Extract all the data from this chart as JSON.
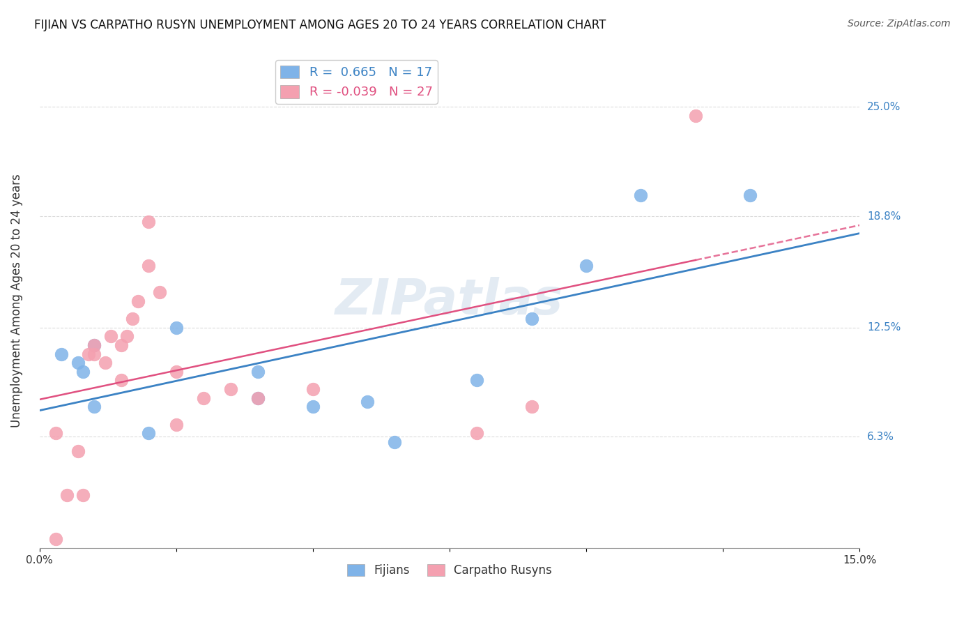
{
  "title": "FIJIAN VS CARPATHO RUSYN UNEMPLOYMENT AMONG AGES 20 TO 24 YEARS CORRELATION CHART",
  "source": "Source: ZipAtlas.com",
  "ylabel": "Unemployment Among Ages 20 to 24 years",
  "xmin": 0.0,
  "xmax": 0.15,
  "ymin": 0.0,
  "ymax": 0.28,
  "fijian_color": "#7fb3e8",
  "fijian_line_color": "#3b82c4",
  "carpatho_color": "#f4a0b0",
  "carpatho_line_color": "#e05080",
  "background_color": "#ffffff",
  "watermark": "ZIPatlas",
  "legend_R1": "R =  0.665   N = 17",
  "legend_R2": "R = -0.039   N = 27",
  "legend_label1": "Fijians",
  "legend_label2": "Carpatho Rusyns",
  "fijian_x": [
    0.004,
    0.007,
    0.008,
    0.01,
    0.01,
    0.02,
    0.025,
    0.04,
    0.04,
    0.05,
    0.06,
    0.065,
    0.08,
    0.09,
    0.1,
    0.11,
    0.13
  ],
  "fijian_y": [
    0.11,
    0.105,
    0.1,
    0.08,
    0.115,
    0.065,
    0.125,
    0.1,
    0.085,
    0.08,
    0.083,
    0.06,
    0.095,
    0.13,
    0.16,
    0.2,
    0.2
  ],
  "carpatho_x": [
    0.003,
    0.003,
    0.005,
    0.007,
    0.008,
    0.009,
    0.01,
    0.01,
    0.012,
    0.013,
    0.015,
    0.015,
    0.016,
    0.017,
    0.018,
    0.02,
    0.02,
    0.022,
    0.025,
    0.025,
    0.03,
    0.035,
    0.04,
    0.05,
    0.08,
    0.09,
    0.12
  ],
  "carpatho_y": [
    0.005,
    0.065,
    0.03,
    0.055,
    0.03,
    0.11,
    0.11,
    0.115,
    0.105,
    0.12,
    0.115,
    0.095,
    0.12,
    0.13,
    0.14,
    0.16,
    0.185,
    0.145,
    0.1,
    0.07,
    0.085,
    0.09,
    0.085,
    0.09,
    0.065,
    0.08,
    0.245
  ],
  "ytick_vals": [
    0.0,
    0.063,
    0.125,
    0.188,
    0.25
  ],
  "ytick_labels_right": [
    "",
    "6.3%",
    "12.5%",
    "18.8%",
    "25.0%"
  ],
  "xtick_vals": [
    0.0,
    0.025,
    0.05,
    0.075,
    0.1,
    0.125,
    0.15
  ],
  "xtick_labels": [
    "0.0%",
    "",
    "",
    "",
    "",
    "",
    "15.0%"
  ]
}
